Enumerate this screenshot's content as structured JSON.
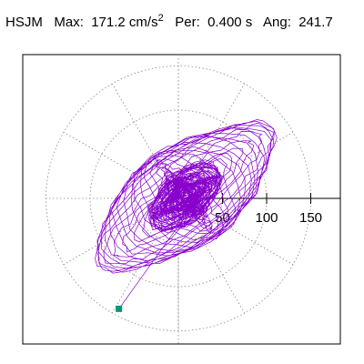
{
  "header": {
    "station": "HSJM",
    "max_label": "Max:",
    "max_value": "171.2 cm/s",
    "max_exponent": "2",
    "period_label": "Per:",
    "period_value": "0.400 s",
    "angle_label": "Ang:",
    "angle_value": "241.7"
  },
  "chart_data": {
    "type": "polar-hodogram",
    "title": "",
    "xlabel": "",
    "ylabel": "",
    "radial_ticks": [
      50,
      100,
      150
    ],
    "tick_labels": [
      "50",
      "100",
      "150"
    ],
    "rmax": 150,
    "radial_gridlines": [
      50,
      100,
      150
    ],
    "spoke_angles_deg": [
      0,
      30,
      60,
      90,
      120,
      150,
      180,
      210,
      240,
      270,
      300,
      330
    ],
    "peak": {
      "amplitude": 171.2,
      "angle_deg": 241.7
    },
    "trace_color": "#8800cc",
    "marker_color": "#009977",
    "grid_color": "#888888"
  }
}
